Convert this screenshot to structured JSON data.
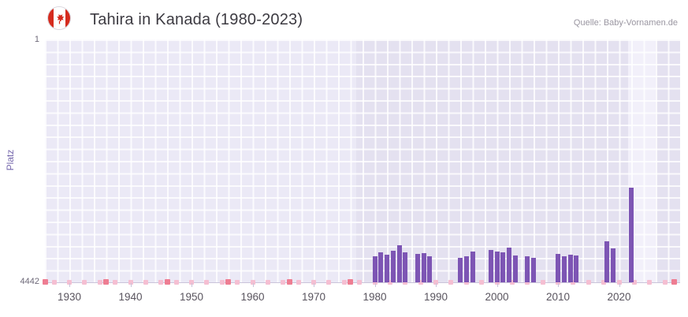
{
  "header": {
    "title": "Tahira in Kanada (1980-2023)",
    "source": "Quelle: Baby-Vornamen.de",
    "flag": "canada-flag"
  },
  "chart_data": {
    "type": "bar",
    "title": "Tahira in Kanada (1980-2023)",
    "xlabel": "",
    "ylabel": "Platz",
    "legend": "none",
    "grid": true,
    "y_axis": {
      "inverted": true,
      "min": 1,
      "max": 4442,
      "top_label": "1",
      "bottom_label": "4442"
    },
    "x_axis": {
      "range": [
        1926,
        2030
      ],
      "ticks": [
        1930,
        1940,
        1950,
        1960,
        1970,
        1980,
        1990,
        2000,
        2010,
        2020
      ]
    },
    "bars": [
      {
        "year": 1980,
        "rank": 3960
      },
      {
        "year": 1981,
        "rank": 3900
      },
      {
        "year": 1982,
        "rank": 3930
      },
      {
        "year": 1983,
        "rank": 3860
      },
      {
        "year": 1984,
        "rank": 3770
      },
      {
        "year": 1985,
        "rank": 3890
      },
      {
        "year": 1987,
        "rank": 3920
      },
      {
        "year": 1988,
        "rank": 3910
      },
      {
        "year": 1989,
        "rank": 3960
      },
      {
        "year": 1994,
        "rank": 4000
      },
      {
        "year": 1995,
        "rank": 3970
      },
      {
        "year": 1996,
        "rank": 3880
      },
      {
        "year": 1999,
        "rank": 3850
      },
      {
        "year": 2000,
        "rank": 3880
      },
      {
        "year": 2001,
        "rank": 3900
      },
      {
        "year": 2002,
        "rank": 3800
      },
      {
        "year": 2003,
        "rank": 3950
      },
      {
        "year": 2005,
        "rank": 3970
      },
      {
        "year": 2006,
        "rank": 3990
      },
      {
        "year": 2010,
        "rank": 3920
      },
      {
        "year": 2011,
        "rank": 3970
      },
      {
        "year": 2012,
        "rank": 3930
      },
      {
        "year": 2013,
        "rank": 3950
      },
      {
        "year": 2018,
        "rank": 3690
      },
      {
        "year": 2019,
        "rank": 3820
      },
      {
        "year": 2022,
        "rank": 2710
      }
    ],
    "no_rank_markers": {
      "start": 1927.5,
      "step": 2.5,
      "end": 2028.5
    },
    "decade_markers": [
      1926,
      1936,
      1946,
      1956,
      1966,
      1976,
      2029
    ],
    "plot_bands": {
      "pre_data_end": 1977,
      "highlight": {
        "from": 2021.5,
        "to": 2026
      }
    },
    "colors": {
      "bar": "#7d55b4",
      "marker": "#f5bfd2",
      "marker_strong": "#ee7d92",
      "plot_bg": "#e4e1f0",
      "plot_bg_pre": "#ebe9f6",
      "plot_bg_highlight": "#f2f0fa",
      "flag_red": "#d52b1e",
      "axis_label": "#7668ad"
    }
  }
}
